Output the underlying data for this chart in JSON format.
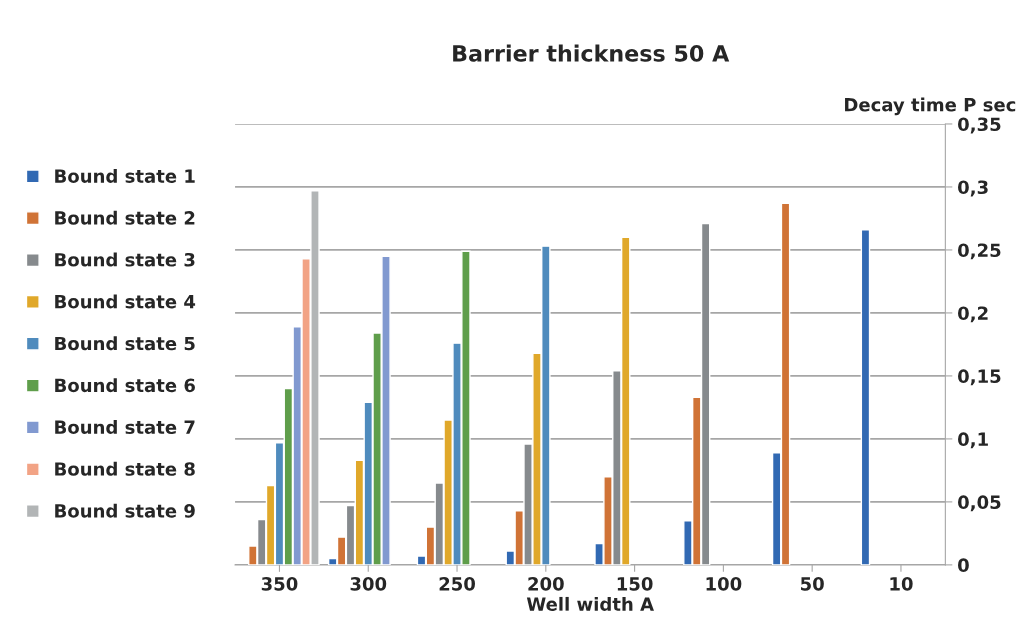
{
  "chart_data": {
    "type": "bar",
    "title": "Barrier thickness 50 A",
    "xlabel": "Well width A",
    "ylabel": "Decay time P sec",
    "categories": [
      "350",
      "300",
      "250",
      "200",
      "150",
      "100",
      "50",
      "10"
    ],
    "series": [
      {
        "name": "Bound state 1",
        "color": "#3169b3",
        "values": [
          null,
          0.005,
          0.007,
          0.011,
          0.017,
          0.035,
          0.089,
          0.266
        ]
      },
      {
        "name": "Bound state 2",
        "color": "#d07336",
        "values": [
          0.015,
          0.022,
          0.03,
          0.043,
          0.07,
          0.133,
          0.287,
          null
        ]
      },
      {
        "name": "Bound state 3",
        "color": "#868a8d",
        "values": [
          0.036,
          0.047,
          0.065,
          0.096,
          0.154,
          0.271,
          null,
          null
        ]
      },
      {
        "name": "Bound state 4",
        "color": "#e0a82a",
        "values": [
          0.063,
          0.083,
          0.115,
          0.168,
          0.26,
          null,
          null,
          null
        ]
      },
      {
        "name": "Bound state 5",
        "color": "#4f8bbd",
        "values": [
          0.097,
          0.129,
          0.176,
          0.253,
          null,
          null,
          null,
          null
        ]
      },
      {
        "name": "Bound state 6",
        "color": "#5f9e4b",
        "values": [
          0.14,
          0.184,
          0.249,
          null,
          null,
          null,
          null,
          null
        ]
      },
      {
        "name": "Bound state 7",
        "color": "#8199d0",
        "values": [
          0.189,
          0.245,
          null,
          null,
          null,
          null,
          null,
          null
        ]
      },
      {
        "name": "Bound state 8",
        "color": "#f2a385",
        "values": [
          0.243,
          null,
          null,
          null,
          null,
          null,
          null,
          null
        ]
      },
      {
        "name": "Bound state 9",
        "color": "#b2b5b6",
        "values": [
          0.297,
          null,
          null,
          null,
          null,
          null,
          null,
          null
        ]
      }
    ],
    "ylim": [
      0,
      0.35
    ],
    "yticks": [
      {
        "value": 0,
        "label": "0"
      },
      {
        "value": 0.05,
        "label": "0,05"
      },
      {
        "value": 0.1,
        "label": "0,1"
      },
      {
        "value": 0.15,
        "label": "0,15"
      },
      {
        "value": 0.2,
        "label": "0,2"
      },
      {
        "value": 0.25,
        "label": "0,25"
      },
      {
        "value": 0.3,
        "label": "0,3"
      },
      {
        "value": 0.35,
        "label": "0,35"
      }
    ],
    "grid": "y",
    "legend": "left"
  }
}
